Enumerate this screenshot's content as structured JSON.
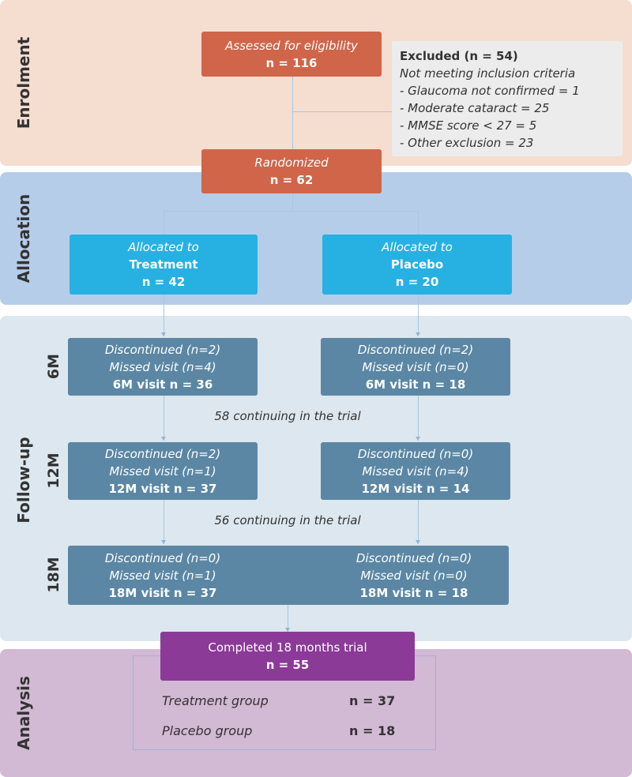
{
  "bands": {
    "enrolment": "Enrolment",
    "allocation": "Allocation",
    "follow_up": "Follow-up",
    "analysis": "Analysis"
  },
  "enrolment": {
    "assessed_label": "Assessed for eligibility",
    "assessed_n": "n = 116",
    "excluded": {
      "title": "Excluded (n = 54)",
      "subtitle": "Not meeting inclusion criteria",
      "items": [
        "- Glaucoma not confirmed = 1",
        "- Moderate cataract = 25",
        "- MMSE score < 27 = 5",
        "- Other exclusion = 23"
      ]
    },
    "randomized_label": "Randomized",
    "randomized_n": "n = 62"
  },
  "allocation": {
    "treatment": {
      "prefix": "Allocated to",
      "group": "Treatment",
      "n": "n = 42"
    },
    "placebo": {
      "prefix": "Allocated to",
      "group": "Placebo",
      "n": "n = 20"
    }
  },
  "follow_up": {
    "stages": [
      {
        "label": "6M",
        "treatment": [
          "Discontinued (n=2)",
          "Missed visit (n=4)",
          "6M visit n = 36"
        ],
        "placebo": [
          "Discontinued (n=2)",
          "Missed visit (n=0)",
          "6M visit n = 18"
        ]
      },
      {
        "label": "12M",
        "treatment": [
          "Discontinued (n=2)",
          "Missed visit (n=1)",
          "12M visit n = 37"
        ],
        "placebo": [
          "Discontinued (n=0)",
          "Missed visit (n=4)",
          "12M visit n = 14"
        ]
      },
      {
        "label": "18M",
        "treatment": [
          "Discontinued (n=0)",
          "Missed visit (n=1)",
          "18M visit n = 37"
        ],
        "placebo": [
          "Discontinued (n=0)",
          "Missed visit (n=0)",
          "18M visit n = 18"
        ]
      }
    ],
    "continuing": [
      "58 continuing in the trial",
      "56 continuing in the trial"
    ]
  },
  "analysis": {
    "completed_label": "Completed 18 months trial",
    "completed_n": "n = 55",
    "groups": [
      {
        "name": "Treatment group",
        "n": "n = 37"
      },
      {
        "name": "Placebo group",
        "n": "n = 18"
      }
    ]
  },
  "colors": {
    "enrolment_band": "#f5ddd0",
    "allocation_band": "#b6cde9",
    "follow_up_band": "#dce7ef",
    "analysis_band": "#d2b9d4",
    "enrolment_box": "#d0654a",
    "allocation_box": "#27b1e2",
    "follow_up_box": "#5b87a4",
    "analysis_box": "#8b3a98"
  }
}
